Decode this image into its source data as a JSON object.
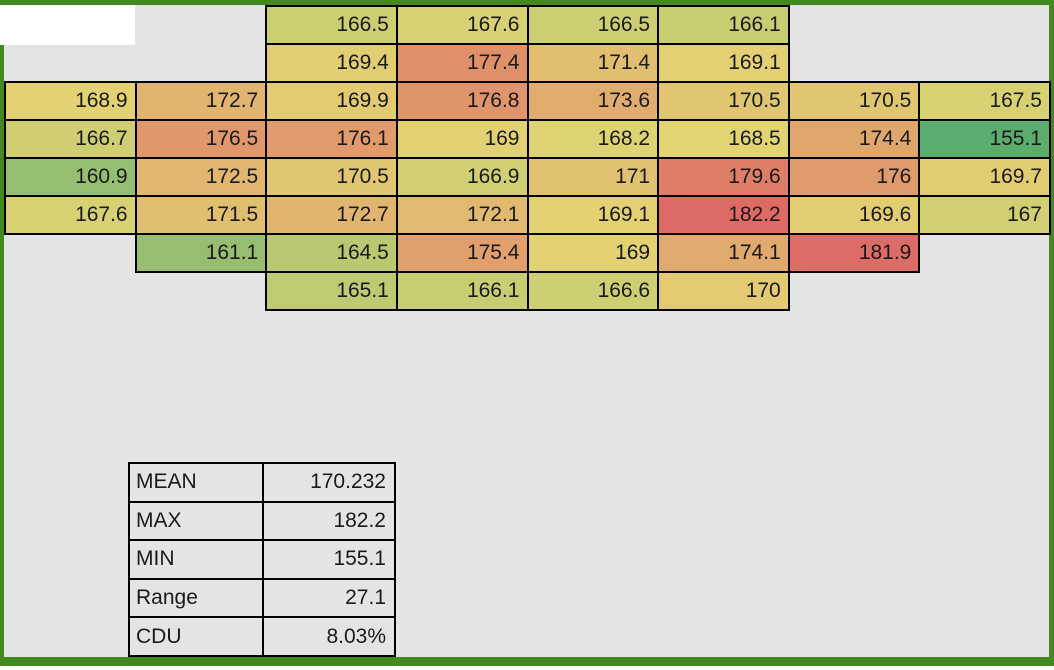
{
  "app": {
    "background_color": "#E5E4E4",
    "frame_color": "#44891F",
    "cell_border_color": "#000000",
    "blank_cell_color": "#FFFFFF",
    "text_color": "#1a1a1a"
  },
  "chart_data": {
    "type": "heatmap",
    "title": "",
    "columns": 8,
    "rows": [
      {
        "start": 2,
        "values": [
          166.5,
          167.6,
          166.5,
          166.1
        ]
      },
      {
        "start": 2,
        "values": [
          169.4,
          177.4,
          171.4,
          169.1
        ]
      },
      {
        "start": 0,
        "values": [
          168.9,
          172.7,
          169.9,
          176.8,
          173.6,
          170.5,
          170.5,
          167.5
        ]
      },
      {
        "start": 0,
        "values": [
          166.7,
          176.5,
          176.1,
          169,
          168.2,
          168.5,
          174.4,
          155.1
        ]
      },
      {
        "start": 0,
        "values": [
          160.9,
          172.5,
          170.5,
          166.9,
          171,
          179.6,
          176,
          169.7
        ]
      },
      {
        "start": 0,
        "values": [
          167.6,
          171.5,
          172.7,
          172.1,
          169.1,
          182.2,
          169.6,
          167
        ]
      },
      {
        "start": 1,
        "values": [
          161.1,
          164.5,
          175.4,
          169,
          174.1,
          181.9
        ]
      },
      {
        "start": 2,
        "values": [
          165.1,
          166.1,
          166.6,
          170
        ]
      }
    ],
    "color_scale": {
      "min_value": 155.1,
      "mid_value": 168.65,
      "max_value": 182.2,
      "min_color": "#5BAD6E",
      "mid_color": "#E2D473",
      "max_color": "#DE6A66"
    }
  },
  "stats": {
    "rows": [
      {
        "label": "MEAN",
        "value": "170.232"
      },
      {
        "label": "MAX",
        "value": "182.2"
      },
      {
        "label": "MIN",
        "value": "155.1"
      },
      {
        "label": "Range",
        "value": "27.1"
      },
      {
        "label": "CDU",
        "value": "8.03%"
      }
    ]
  }
}
